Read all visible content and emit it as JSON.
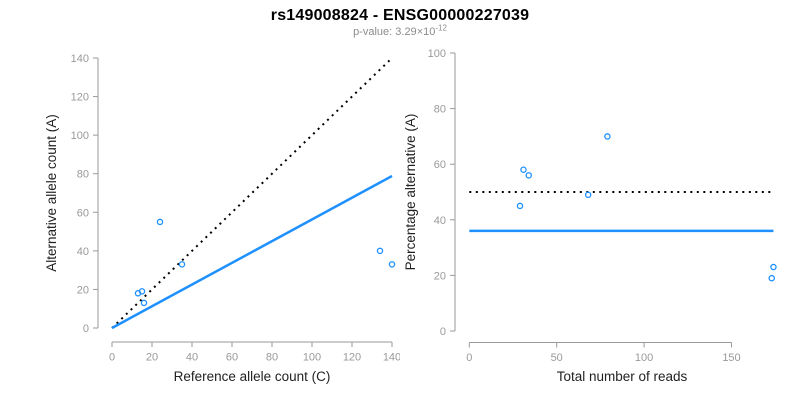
{
  "title": "rs149008824 - ENSG00000227039",
  "subtitle": {
    "label": "p-value: ",
    "mantissa": "3.29",
    "multiplier": "×10",
    "exponent": "-12"
  },
  "colors": {
    "point_blue": "#1E90FF",
    "fit_line_blue": "#1E90FF",
    "reference_line_black": "#000000",
    "axis_gray": "#9a9a9a",
    "tick_label_gray": "#999999",
    "axis_title_color": "#222222",
    "title_color": "#000000",
    "subtitle_gray": "#8c8c8c",
    "background": "#ffffff"
  },
  "chart_data": [
    {
      "type": "scatter",
      "name": "allele-count-scatter",
      "xlabel": "Reference allele count (C)",
      "ylabel": "Alternative allele count (A)",
      "xlim": [
        0,
        140
      ],
      "ylim": [
        0,
        140
      ],
      "xticks": [
        0,
        20,
        40,
        60,
        80,
        100,
        120,
        140
      ],
      "yticks": [
        0,
        20,
        40,
        60,
        80,
        100,
        120,
        140
      ],
      "grid": false,
      "legend": null,
      "points": [
        {
          "x": 24,
          "y": 55
        },
        {
          "x": 35,
          "y": 33
        },
        {
          "x": 13,
          "y": 18
        },
        {
          "x": 15,
          "y": 19
        },
        {
          "x": 16,
          "y": 13
        },
        {
          "x": 134,
          "y": 40
        },
        {
          "x": 140,
          "y": 33
        }
      ],
      "lines": [
        {
          "name": "identity-line",
          "style": "dotted",
          "color": "#000000",
          "from": [
            0,
            0
          ],
          "to": [
            140,
            140
          ]
        },
        {
          "name": "fitted-ratio-line",
          "style": "solid",
          "color": "#1E90FF",
          "from": [
            0,
            0
          ],
          "to": [
            140,
            78.8
          ]
        }
      ]
    },
    {
      "type": "scatter",
      "name": "percentage-scatter",
      "xlabel": "Total number of reads",
      "ylabel": "Percentage alternative (A)",
      "xlim": [
        0,
        175
      ],
      "ylim": [
        0,
        100
      ],
      "xticks": [
        0,
        50,
        100,
        150
      ],
      "yticks": [
        0,
        20,
        40,
        60,
        80,
        100
      ],
      "grid": false,
      "legend": null,
      "points": [
        {
          "x": 79,
          "y": 70
        },
        {
          "x": 68,
          "y": 49
        },
        {
          "x": 31,
          "y": 58
        },
        {
          "x": 34,
          "y": 56
        },
        {
          "x": 29,
          "y": 45
        },
        {
          "x": 174,
          "y": 23
        },
        {
          "x": 173,
          "y": 19
        }
      ],
      "lines": [
        {
          "name": "fifty-percent-line",
          "style": "dotted",
          "color": "#000000",
          "from": [
            0,
            50
          ],
          "to": [
            174,
            50
          ]
        },
        {
          "name": "mean-percentage-line",
          "style": "solid",
          "color": "#1E90FF",
          "from": [
            0,
            36
          ],
          "to": [
            174,
            36
          ]
        }
      ]
    }
  ]
}
